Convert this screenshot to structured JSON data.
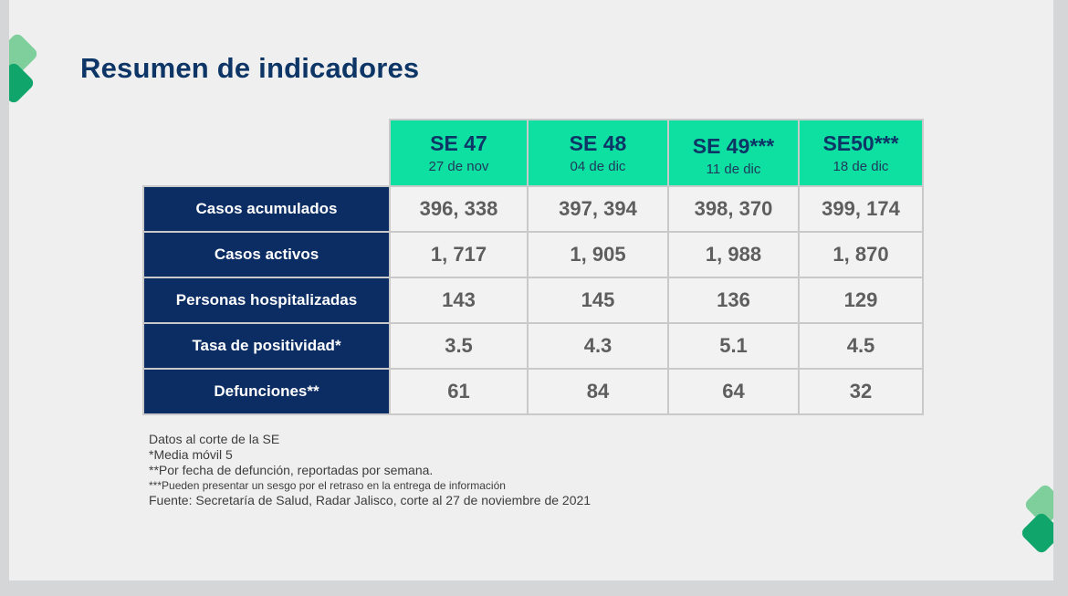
{
  "title": "Resumen de indicadores",
  "weeks": [
    {
      "label": "SE 47",
      "date": "27 de nov"
    },
    {
      "label": "SE 48",
      "date": "04 de dic"
    },
    {
      "label": "SE 49***",
      "date": "11 de dic"
    },
    {
      "label": "SE50***",
      "date": "18 de dic"
    }
  ],
  "rows": [
    {
      "label": "Casos acumulados",
      "values": [
        "396, 338",
        "397, 394",
        "398, 370",
        "399, 174"
      ]
    },
    {
      "label": "Casos activos",
      "values": [
        "1, 717",
        "1, 905",
        "1, 988",
        "1, 870"
      ]
    },
    {
      "label": "Personas hospitalizadas",
      "values": [
        "143",
        "145",
        "136",
        "129"
      ]
    },
    {
      "label": "Tasa de positividad*",
      "values": [
        "3.5",
        "4.3",
        "5.1",
        "4.5"
      ]
    },
    {
      "label": "Defunciones**",
      "values": [
        "61",
        "84",
        "64",
        "32"
      ]
    }
  ],
  "notes": {
    "line1": "Datos al corte de la SE",
    "line2": "*Media móvil 5",
    "line3": "**Por fecha de defunción, reportadas por semana.",
    "line4": "***Pueden presentar un sesgo por el retraso en la entrega de información",
    "line5": "Fuente: Secretaría de Salud, Radar Jalisco, corte al 27 de noviembre de 2021"
  },
  "colors": {
    "header_green": "#0ee0a2",
    "row_navy": "#0b2d63",
    "title_navy": "#0d3566",
    "chevron_light": "#7fcf9c",
    "chevron_dark": "#0fa56b"
  }
}
